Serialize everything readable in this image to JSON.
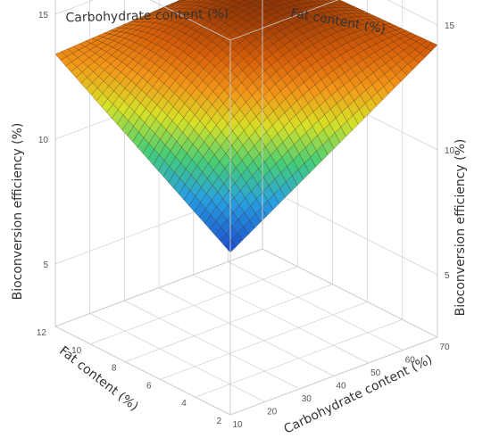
{
  "chart_data": {
    "type": "surface",
    "x_axis": {
      "label": "Carbohydrate content (%)",
      "range": [
        10,
        70
      ],
      "ticks": [
        10,
        20,
        30,
        40,
        50,
        60,
        70
      ]
    },
    "y_axis": {
      "label": "Fat content (%)",
      "range": [
        2,
        12
      ],
      "ticks": [
        2,
        4,
        6,
        8,
        10,
        12
      ]
    },
    "z_axis": {
      "label": "Bioconversion efficiency (%)",
      "range": [
        2.5,
        17.5
      ],
      "ticks": [
        5,
        10,
        15
      ]
    },
    "grid": true,
    "colormap": "blue-green-yellow-orange",
    "surface_samples": {
      "carbohydrate_pct": [
        10,
        70,
        10,
        70,
        40
      ],
      "fat_pct": [
        12,
        12,
        2,
        2,
        7
      ],
      "efficiency_pct": [
        13.4,
        13.9,
        9.0,
        14.2,
        14.6
      ]
    }
  }
}
